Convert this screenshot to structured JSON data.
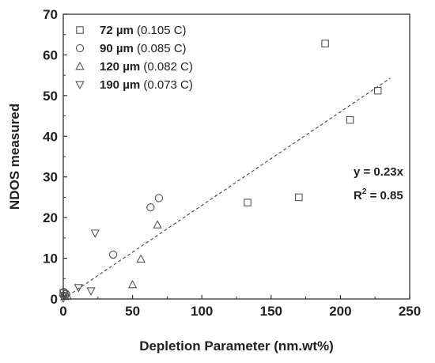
{
  "chart_data": {
    "type": "scatter",
    "title": "",
    "xlabel": "Depletion Parameter (nm.wt%)",
    "ylabel": "NDOS measured",
    "xlim": [
      0,
      250
    ],
    "ylim": [
      0,
      70
    ],
    "x_ticks": [
      "0",
      "50",
      "100",
      "150",
      "200",
      "250"
    ],
    "y_ticks": [
      "0",
      "10",
      "20",
      "30",
      "40",
      "50",
      "60",
      "70"
    ],
    "grid": false,
    "legend_position": "top-left",
    "series": [
      {
        "name": "72 µm",
        "name_bold": "72 µm",
        "name_detail": "(0.105 C)",
        "marker": "square",
        "points": [
          [
            0,
            1.5
          ],
          [
            1,
            0.8
          ],
          [
            133,
            23.7
          ],
          [
            170,
            25.0
          ],
          [
            189,
            62.8
          ],
          [
            207,
            44.0
          ],
          [
            227,
            51.2
          ]
        ]
      },
      {
        "name": "90 µm",
        "name_bold": "90 µm",
        "name_detail": "(0.085 C)",
        "marker": "circle",
        "points": [
          [
            0.5,
            1.7
          ],
          [
            2,
            1.2
          ],
          [
            36,
            10.9
          ],
          [
            63,
            22.5
          ],
          [
            69,
            24.8
          ]
        ]
      },
      {
        "name": "120 µm",
        "name_bold": "120 µm",
        "name_detail": "(0.082 C)",
        "marker": "triangle-up",
        "points": [
          [
            1,
            0.6
          ],
          [
            3,
            0.7
          ],
          [
            50,
            3.5
          ],
          [
            56,
            9.8
          ],
          [
            68,
            18.2
          ]
        ]
      },
      {
        "name": "190 µm",
        "name_bold": "190 µm",
        "name_detail": "(0.073 C)",
        "marker": "triangle-down",
        "points": [
          [
            0,
            0.2
          ],
          [
            11,
            2.8
          ],
          [
            20,
            2.0
          ],
          [
            23,
            16.2
          ]
        ]
      }
    ],
    "fit_line": {
      "style": "dashed",
      "slope": 0.23,
      "x_range": [
        0,
        236
      ]
    },
    "annotations": {
      "equation": "y = 0.23x",
      "r2_prefix": "R",
      "r2_sup": "2",
      "r2_value": " = 0.85"
    }
  }
}
